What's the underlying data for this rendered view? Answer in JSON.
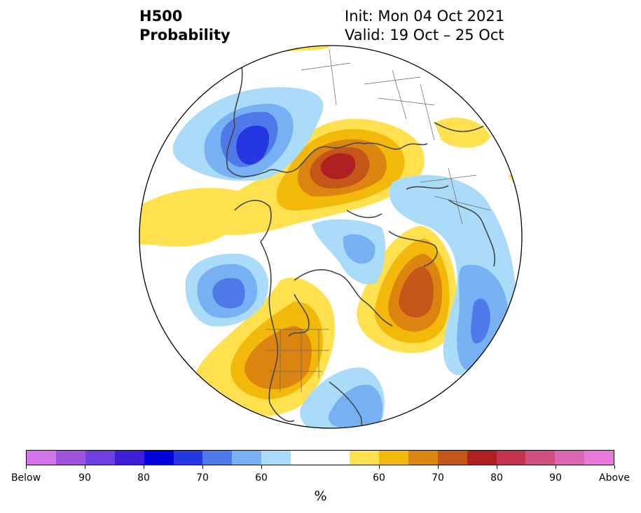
{
  "title": {
    "line1": "H500",
    "line2": "Probability"
  },
  "subtitle": {
    "init": "Init: Mon 04 Oct 2021",
    "valid": "Valid: 19 Oct – 25 Oct"
  },
  "colorbar": {
    "colors": [
      "#d474e8",
      "#a052dc",
      "#6f3fe0",
      "#3f1ed8",
      "#0000d8",
      "#2437e0",
      "#4f79e8",
      "#77b1f3",
      "#aadcfa",
      "#ffffff",
      "#ffffff",
      "#ffe14f",
      "#f2b90a",
      "#dc8410",
      "#c4561a",
      "#b01f22",
      "#c3354e",
      "#cf4f7e",
      "#dc66ad",
      "#e879db"
    ],
    "labels": [
      "Below",
      "90",
      "80",
      "70",
      "60",
      "60",
      "70",
      "80",
      "90",
      "Above"
    ],
    "unit": "%"
  },
  "colors": {
    "coast": "#444444",
    "border": "#666666",
    "ocean": "#ffffff"
  }
}
